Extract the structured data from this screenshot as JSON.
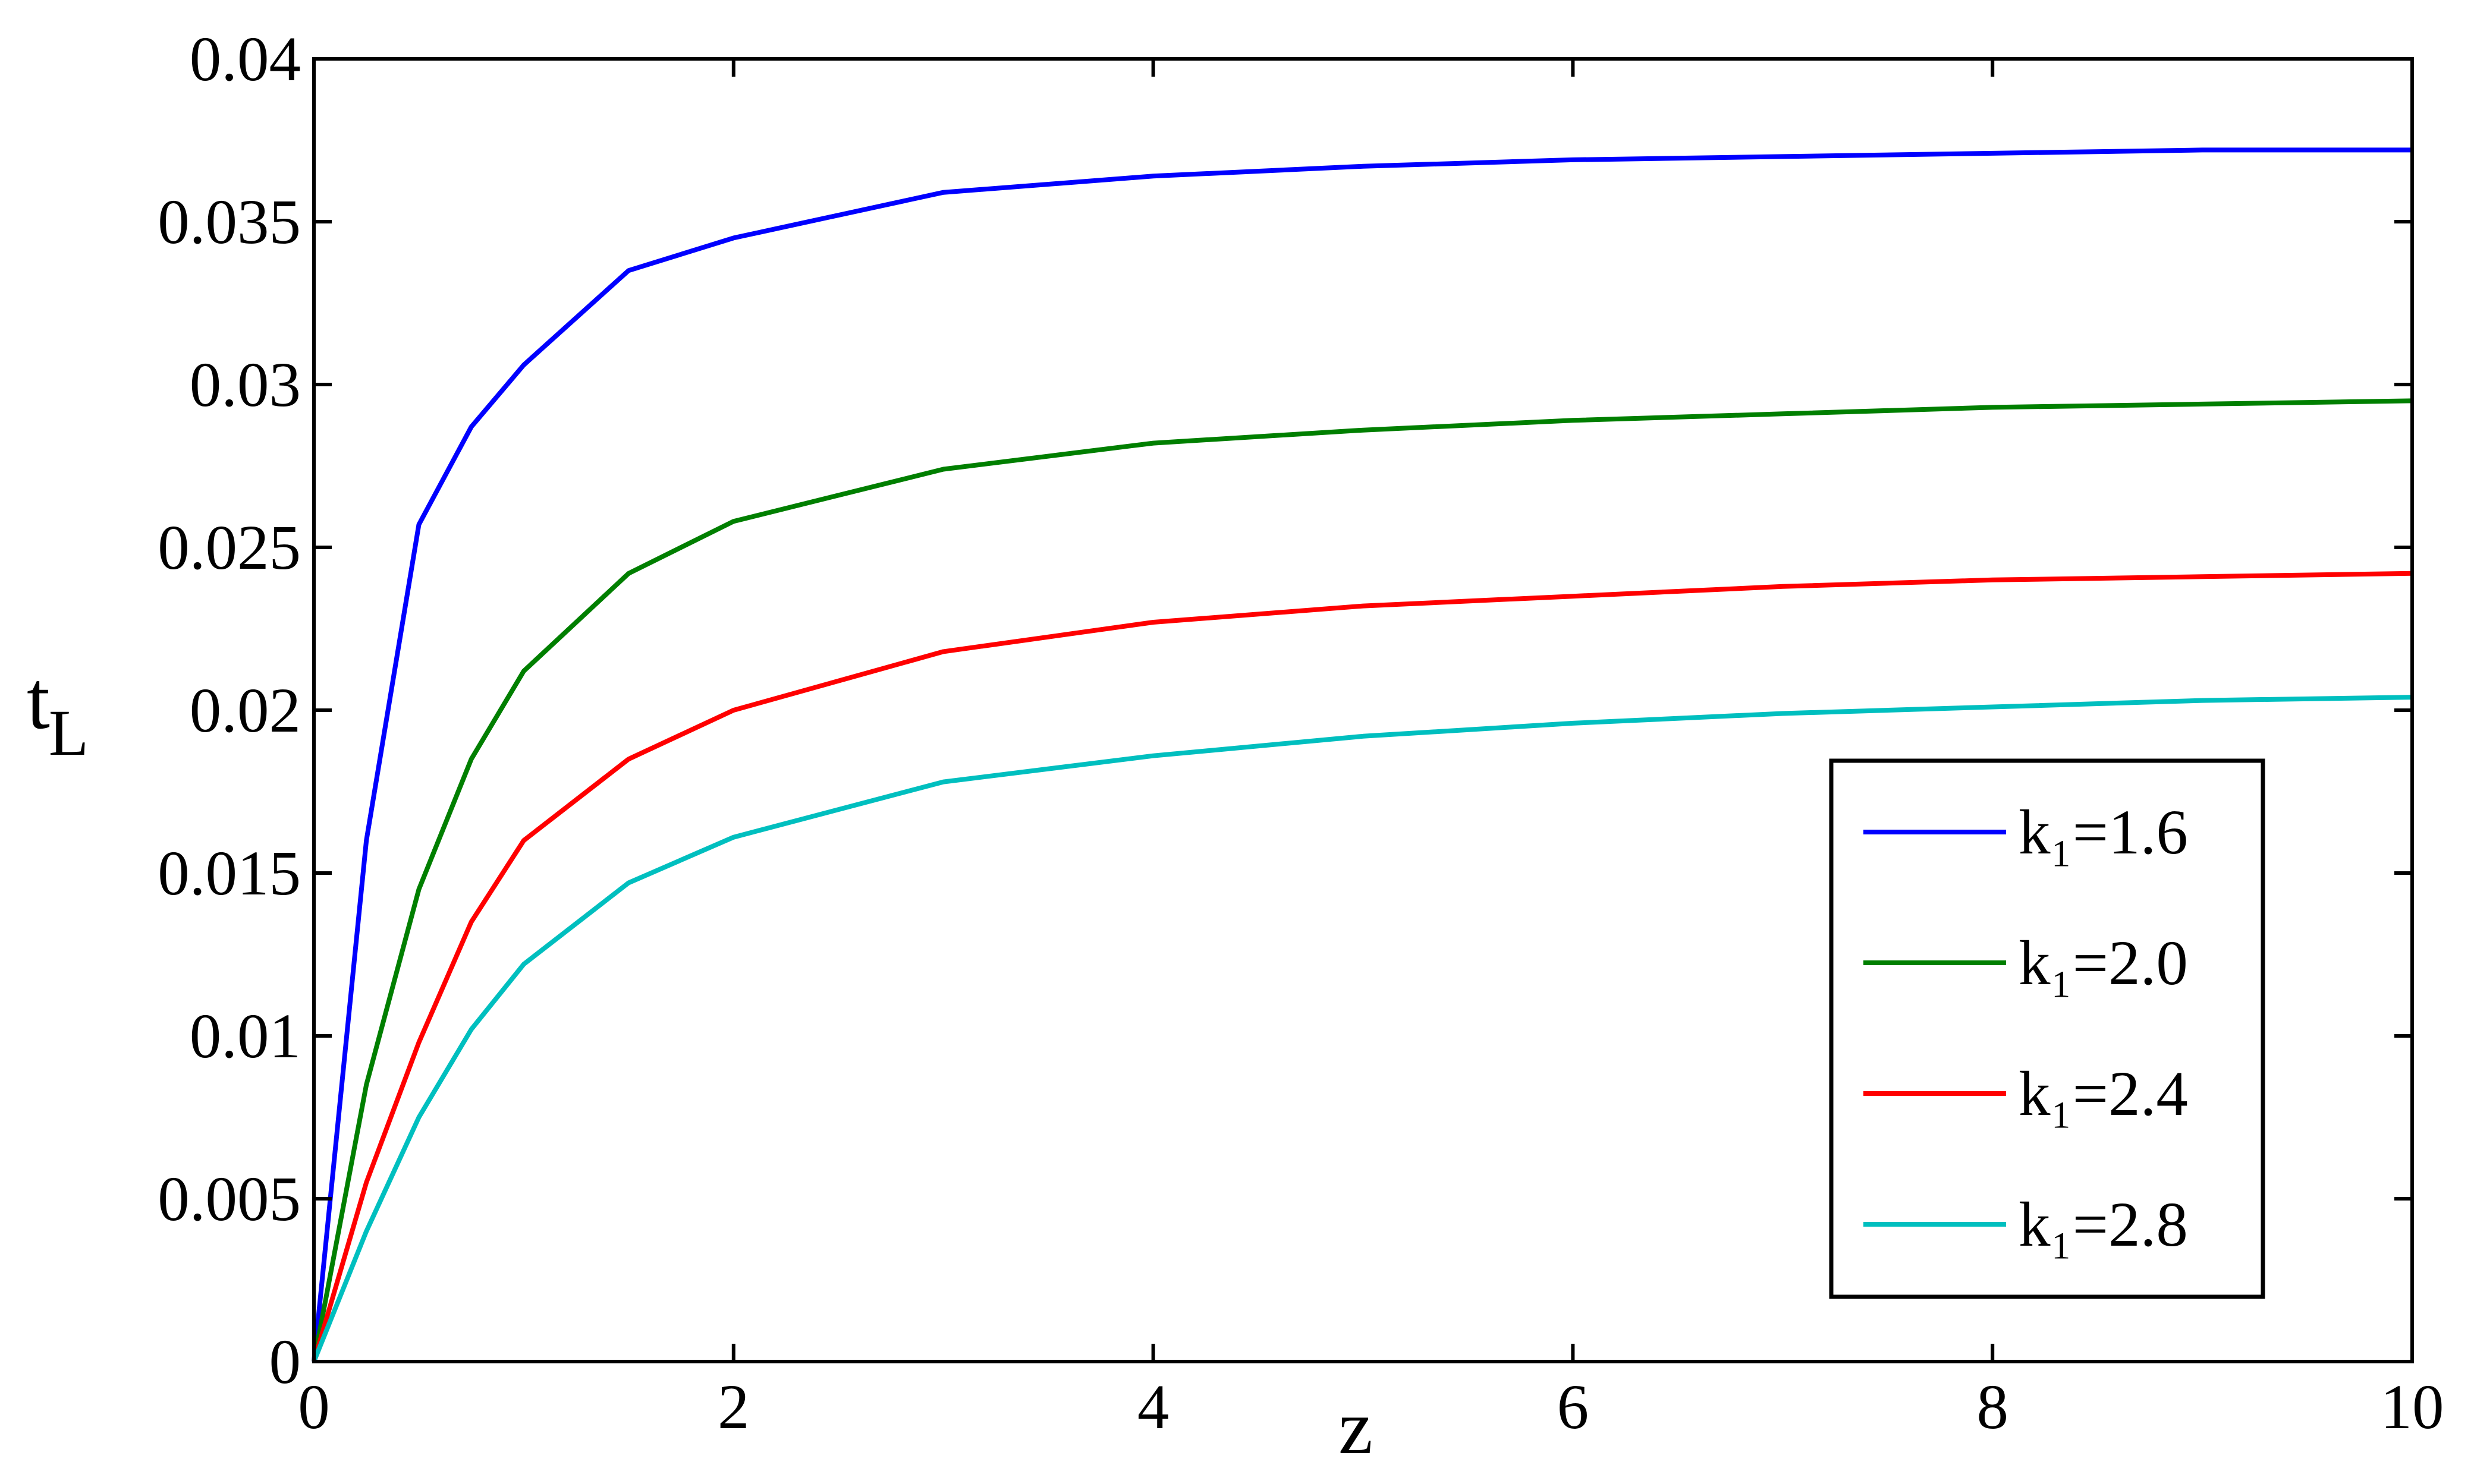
{
  "chart_data": {
    "type": "line",
    "xlabel": "z",
    "ylabel": "tL",
    "x": [
      0,
      0.25,
      0.5,
      0.75,
      1,
      1.5,
      2,
      3,
      4,
      5,
      6,
      7,
      8,
      9,
      10
    ],
    "series": [
      {
        "name": "k₁=1.6",
        "color": "#0000ff",
        "values": [
          0,
          0.016,
          0.0257,
          0.0287,
          0.0306,
          0.0335,
          0.0345,
          0.0359,
          0.0364,
          0.0367,
          0.0369,
          0.037,
          0.0371,
          0.0372,
          0.0372
        ]
      },
      {
        "name": "k₁=2.0",
        "color": "#007f00",
        "values": [
          0,
          0.0085,
          0.0145,
          0.0185,
          0.0212,
          0.0242,
          0.0258,
          0.0274,
          0.0282,
          0.0286,
          0.0289,
          0.0291,
          0.0293,
          0.0294,
          0.0295
        ]
      },
      {
        "name": "k₁=2.4",
        "color": "#ff0000",
        "values": [
          0,
          0.0055,
          0.0098,
          0.0135,
          0.016,
          0.0185,
          0.02,
          0.0218,
          0.0227,
          0.0232,
          0.0235,
          0.0238,
          0.024,
          0.0241,
          0.0242
        ]
      },
      {
        "name": "k₁=2.8",
        "color": "#00bfbf",
        "values": [
          0,
          0.004,
          0.0075,
          0.0102,
          0.0122,
          0.0147,
          0.0161,
          0.0178,
          0.0186,
          0.0192,
          0.0196,
          0.0199,
          0.0201,
          0.0203,
          0.0204
        ]
      }
    ],
    "xlim": [
      0,
      10
    ],
    "xticks": [
      0,
      2,
      4,
      6,
      8,
      10
    ],
    "ylim": [
      0,
      0.04
    ],
    "yticks": [
      0,
      0.005,
      0.01,
      0.015,
      0.02,
      0.025,
      0.03,
      0.035,
      0.04
    ],
    "grid": false,
    "legend": "lower right"
  }
}
